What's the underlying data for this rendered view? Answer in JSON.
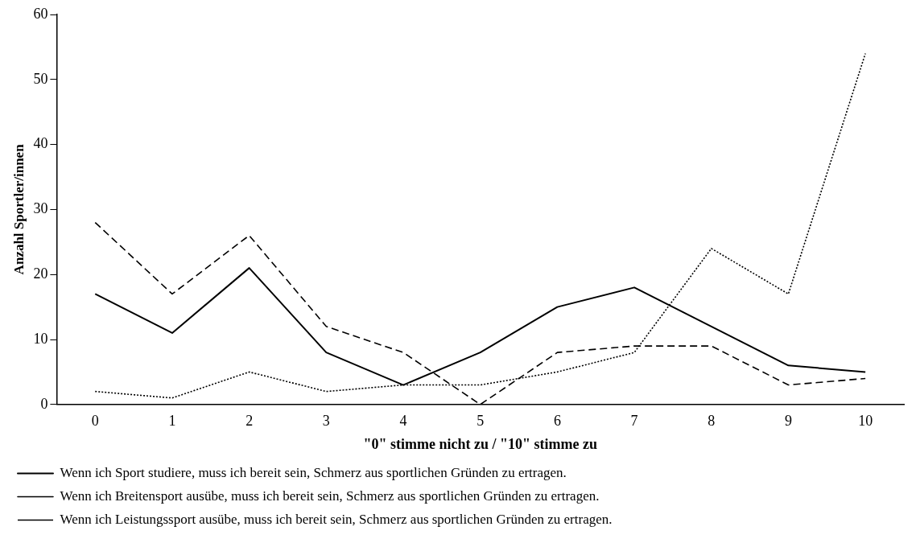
{
  "chart_data": {
    "type": "line",
    "xlabel": "\"0\" stimme nicht zu / \"10\" stimme zu",
    "ylabel": "Anzahl Sportler/innen",
    "categories": [
      "0",
      "1",
      "2",
      "3",
      "4",
      "5",
      "6",
      "7",
      "8",
      "9",
      "10"
    ],
    "series": [
      {
        "name": "Wenn ich Sport studiere, muss ich bereit sein, Schmerz aus sportlichen Gründen zu ertragen.",
        "color": "#000000",
        "line_style": "solid",
        "values": [
          17,
          11,
          21,
          8,
          3,
          8,
          15,
          18,
          12,
          6,
          5
        ]
      },
      {
        "name": "Wenn ich Breitensport ausübe, muss ich bereit sein, Schmerz aus sportlichen Gründen zu ertragen.",
        "color": "#000000",
        "line_style": "dashed",
        "values": [
          28,
          17,
          26,
          12,
          8,
          0,
          8,
          9,
          9,
          3,
          4
        ]
      },
      {
        "name": "Wenn ich Leistungssport ausübe, muss ich bereit sein, Schmerz aus sportlichen Gründen zu ertragen.",
        "color": "#000000",
        "line_style": "dotted",
        "values": [
          2,
          1,
          5,
          2,
          3,
          3,
          5,
          8,
          24,
          17,
          54
        ]
      }
    ],
    "ylim": [
      0,
      60
    ],
    "yticks": [
      0,
      10,
      20,
      30,
      40,
      50,
      60
    ],
    "grid": false,
    "legend": "bottom",
    "marker": "none"
  }
}
